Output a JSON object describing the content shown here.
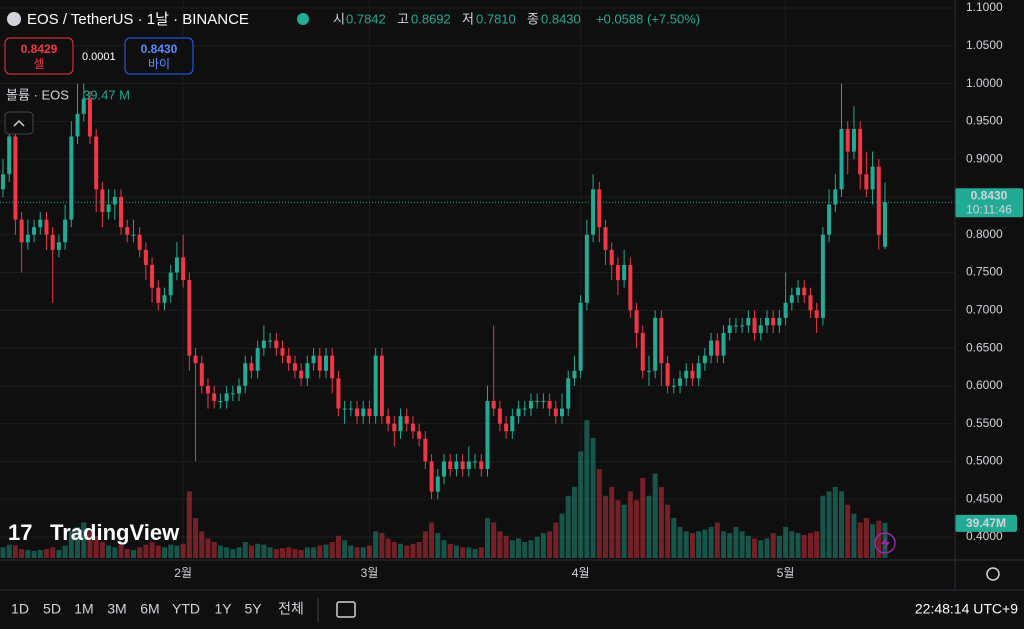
{
  "chart_data": {
    "type": "candlestick",
    "title": "EOS / TetherUS · 1날 · BINANCE",
    "open": [
      0.86,
      0.88,
      0.93,
      0.82,
      0.79,
      0.8,
      0.81,
      0.82,
      0.8,
      0.78,
      0.79,
      0.82,
      0.93,
      0.96,
      0.98,
      0.93,
      0.86,
      0.83,
      0.84,
      0.85,
      0.81,
      0.8,
      0.8,
      0.78,
      0.76,
      0.73,
      0.71,
      0.72,
      0.75,
      0.77,
      0.74,
      0.64,
      0.63,
      0.6,
      0.59,
      0.58,
      0.58,
      0.59,
      0.59,
      0.6,
      0.63,
      0.62,
      0.65,
      0.66,
      0.66,
      0.65,
      0.64,
      0.63,
      0.62,
      0.61,
      0.63,
      0.64,
      0.62,
      0.64,
      0.61,
      0.57,
      0.57,
      0.57,
      0.56,
      0.57,
      0.56,
      0.64,
      0.56,
      0.55,
      0.54,
      0.56,
      0.55,
      0.54,
      0.53,
      0.5,
      0.46,
      0.48,
      0.5,
      0.49,
      0.5,
      0.49,
      0.5,
      0.5,
      0.49,
      0.58,
      0.57,
      0.55,
      0.54,
      0.56,
      0.57,
      0.57,
      0.58,
      0.58,
      0.58,
      0.57,
      0.56,
      0.57,
      0.61,
      0.62,
      0.71,
      0.8,
      0.86,
      0.81,
      0.78,
      0.76,
      0.74,
      0.76,
      0.7,
      0.67,
      0.62,
      0.62,
      0.69,
      0.63,
      0.6,
      0.6,
      0.61,
      0.62,
      0.61,
      0.63,
      0.64,
      0.66,
      0.64,
      0.67,
      0.68,
      0.68,
      0.68,
      0.69,
      0.67,
      0.68,
      0.69,
      0.68,
      0.69,
      0.71,
      0.72,
      0.73,
      0.72,
      0.7,
      0.69,
      0.8,
      0.84,
      0.86,
      0.94,
      0.91,
      0.94,
      0.88,
      0.86,
      0.89,
      0.7842
    ],
    "high": [
      0.9,
      0.94,
      0.94,
      0.83,
      0.82,
      0.82,
      0.83,
      0.83,
      0.81,
      0.8,
      0.84,
      0.95,
      1.0,
      1.0,
      0.99,
      0.94,
      0.87,
      0.86,
      0.86,
      0.86,
      0.82,
      0.82,
      0.81,
      0.79,
      0.77,
      0.74,
      0.73,
      0.76,
      0.79,
      0.8,
      0.75,
      0.65,
      0.64,
      0.61,
      0.6,
      0.59,
      0.6,
      0.6,
      0.61,
      0.64,
      0.64,
      0.66,
      0.68,
      0.67,
      0.67,
      0.66,
      0.65,
      0.64,
      0.63,
      0.64,
      0.65,
      0.65,
      0.65,
      0.65,
      0.62,
      0.58,
      0.58,
      0.58,
      0.58,
      0.58,
      0.65,
      0.65,
      0.57,
      0.56,
      0.57,
      0.57,
      0.56,
      0.55,
      0.54,
      0.51,
      0.49,
      0.51,
      0.51,
      0.51,
      0.51,
      0.52,
      0.51,
      0.51,
      0.6,
      0.68,
      0.58,
      0.56,
      0.57,
      0.58,
      0.58,
      0.59,
      0.59,
      0.59,
      0.59,
      0.58,
      0.59,
      0.62,
      0.64,
      0.72,
      0.82,
      0.88,
      0.87,
      0.82,
      0.79,
      0.77,
      0.78,
      0.77,
      0.71,
      0.68,
      0.64,
      0.7,
      0.7,
      0.64,
      0.61,
      0.62,
      0.63,
      0.63,
      0.64,
      0.65,
      0.67,
      0.67,
      0.68,
      0.69,
      0.69,
      0.69,
      0.7,
      0.7,
      0.69,
      0.7,
      0.7,
      0.7,
      0.75,
      0.73,
      0.74,
      0.74,
      0.73,
      0.71,
      0.81,
      0.86,
      0.88,
      1.0,
      0.95,
      0.97,
      0.95,
      0.91,
      0.91,
      0.9,
      0.8692
    ],
    "low": [
      0.85,
      0.87,
      0.8,
      0.75,
      0.78,
      0.79,
      0.8,
      0.78,
      0.71,
      0.77,
      0.78,
      0.81,
      0.92,
      0.95,
      0.92,
      0.83,
      0.81,
      0.82,
      0.82,
      0.8,
      0.79,
      0.79,
      0.77,
      0.74,
      0.71,
      0.7,
      0.7,
      0.71,
      0.74,
      0.73,
      0.62,
      0.5,
      0.59,
      0.57,
      0.57,
      0.57,
      0.57,
      0.58,
      0.58,
      0.59,
      0.61,
      0.61,
      0.64,
      0.65,
      0.64,
      0.63,
      0.62,
      0.61,
      0.6,
      0.6,
      0.62,
      0.61,
      0.61,
      0.59,
      0.56,
      0.55,
      0.56,
      0.55,
      0.55,
      0.55,
      0.55,
      0.55,
      0.54,
      0.52,
      0.53,
      0.54,
      0.53,
      0.52,
      0.49,
      0.45,
      0.45,
      0.47,
      0.48,
      0.48,
      0.48,
      0.48,
      0.49,
      0.48,
      0.48,
      0.56,
      0.54,
      0.53,
      0.53,
      0.55,
      0.56,
      0.56,
      0.57,
      0.57,
      0.56,
      0.55,
      0.55,
      0.56,
      0.6,
      0.61,
      0.7,
      0.79,
      0.79,
      0.76,
      0.74,
      0.72,
      0.73,
      0.69,
      0.65,
      0.61,
      0.6,
      0.61,
      0.6,
      0.59,
      0.59,
      0.59,
      0.6,
      0.6,
      0.6,
      0.62,
      0.63,
      0.63,
      0.63,
      0.66,
      0.67,
      0.67,
      0.67,
      0.66,
      0.66,
      0.67,
      0.67,
      0.67,
      0.68,
      0.7,
      0.71,
      0.71,
      0.69,
      0.67,
      0.68,
      0.79,
      0.83,
      0.85,
      0.88,
      0.9,
      0.86,
      0.85,
      0.84,
      0.78,
      0.781
    ],
    "close": [
      0.88,
      0.93,
      0.82,
      0.79,
      0.8,
      0.81,
      0.82,
      0.8,
      0.78,
      0.79,
      0.82,
      0.93,
      0.96,
      0.98,
      0.93,
      0.86,
      0.83,
      0.84,
      0.85,
      0.81,
      0.8,
      0.8,
      0.78,
      0.76,
      0.73,
      0.71,
      0.72,
      0.75,
      0.77,
      0.74,
      0.64,
      0.63,
      0.6,
      0.59,
      0.58,
      0.58,
      0.59,
      0.59,
      0.6,
      0.63,
      0.62,
      0.65,
      0.66,
      0.66,
      0.65,
      0.64,
      0.63,
      0.62,
      0.61,
      0.63,
      0.64,
      0.62,
      0.64,
      0.61,
      0.57,
      0.57,
      0.57,
      0.56,
      0.57,
      0.56,
      0.64,
      0.56,
      0.55,
      0.54,
      0.56,
      0.55,
      0.54,
      0.53,
      0.5,
      0.46,
      0.48,
      0.5,
      0.49,
      0.5,
      0.49,
      0.5,
      0.5,
      0.49,
      0.58,
      0.57,
      0.55,
      0.54,
      0.56,
      0.57,
      0.57,
      0.58,
      0.58,
      0.58,
      0.57,
      0.56,
      0.57,
      0.61,
      0.62,
      0.71,
      0.8,
      0.86,
      0.81,
      0.78,
      0.76,
      0.74,
      0.76,
      0.7,
      0.67,
      0.62,
      0.62,
      0.69,
      0.63,
      0.6,
      0.6,
      0.61,
      0.62,
      0.61,
      0.63,
      0.64,
      0.66,
      0.64,
      0.67,
      0.68,
      0.68,
      0.68,
      0.69,
      0.67,
      0.68,
      0.69,
      0.68,
      0.69,
      0.71,
      0.72,
      0.73,
      0.72,
      0.7,
      0.69,
      0.8,
      0.84,
      0.86,
      0.94,
      0.91,
      0.94,
      0.88,
      0.86,
      0.89,
      0.8,
      0.843
    ],
    "volume": [
      12,
      15,
      14,
      10,
      9,
      8,
      9,
      10,
      12,
      9,
      14,
      30,
      35,
      40,
      30,
      25,
      18,
      14,
      12,
      15,
      10,
      9,
      12,
      15,
      18,
      14,
      12,
      15,
      14,
      16,
      75,
      45,
      30,
      22,
      18,
      14,
      12,
      10,
      12,
      18,
      14,
      16,
      15,
      12,
      10,
      11,
      12,
      10,
      9,
      12,
      12,
      14,
      15,
      18,
      25,
      20,
      14,
      12,
      12,
      14,
      30,
      28,
      22,
      18,
      16,
      14,
      16,
      18,
      30,
      40,
      28,
      20,
      16,
      14,
      12,
      12,
      10,
      12,
      45,
      40,
      30,
      25,
      20,
      22,
      18,
      20,
      24,
      28,
      30,
      40,
      50,
      70,
      80,
      120,
      155,
      135,
      100,
      70,
      80,
      65,
      60,
      75,
      65,
      90,
      70,
      95,
      80,
      60,
      45,
      35,
      30,
      28,
      30,
      32,
      35,
      40,
      30,
      28,
      35,
      30,
      25,
      22,
      20,
      22,
      28,
      25,
      35,
      30,
      28,
      26,
      28,
      30,
      70,
      75,
      80,
      75,
      60,
      50,
      40,
      45,
      38,
      42,
      39.47
    ],
    "xticks": [
      {
        "value": 29,
        "label": "2월"
      },
      {
        "value": 59,
        "label": "3월"
      },
      {
        "value": 93,
        "label": "4월"
      },
      {
        "value": 126,
        "label": "5월"
      }
    ],
    "ylim": [
      0.3696,
      1.1106
    ],
    "yticks": [
      {
        "value": 1.1,
        "label": "1.1000"
      },
      {
        "value": 1.05,
        "label": "1.0500"
      },
      {
        "value": 1.0,
        "label": "1.0000"
      },
      {
        "value": 0.95,
        "label": "0.9500"
      },
      {
        "value": 0.9,
        "label": "0.9000"
      },
      {
        "value": 0.85,
        "label": "0.8500"
      },
      {
        "value": 0.8,
        "label": "0.8000"
      },
      {
        "value": 0.75,
        "label": "0.7500"
      },
      {
        "value": 0.7,
        "label": "0.7000"
      },
      {
        "value": 0.65,
        "label": "0.6500"
      },
      {
        "value": 0.6,
        "label": "0.6000"
      },
      {
        "value": 0.55,
        "label": "0.5500"
      },
      {
        "value": 0.5,
        "label": "0.5000"
      },
      {
        "value": 0.45,
        "label": "0.4500"
      },
      {
        "value": 0.4,
        "label": "0.4000"
      }
    ],
    "vlim": [
      0,
      180
    ],
    "grid": true,
    "up_color": "#22ab94",
    "down_color": "#f23645",
    "last_price_label": "0.8430",
    "countdown": "10:11:46",
    "volume_label": "39.47M"
  },
  "legend": {
    "items": [
      {
        "key": "시",
        "value": "0.7842"
      },
      {
        "key": "고",
        "value": "0.8692"
      },
      {
        "key": "저",
        "value": "0.7810"
      },
      {
        "key": "종",
        "value": "0.8430"
      }
    ],
    "change": "+0.0588 (+7.50%)"
  },
  "trade": {
    "sell_price": "0.8429",
    "sell_label": "셀",
    "spread": "0.0001",
    "buy_price": "0.8430",
    "buy_label": "바이"
  },
  "volume_legend": {
    "title": "볼륨 · EOS",
    "value": "39.47 M"
  },
  "logo": "TradingView",
  "toolbar": {
    "ranges": [
      "1D",
      "5D",
      "1M",
      "3M",
      "6M",
      "YTD",
      "1Y",
      "5Y",
      "전체"
    ],
    "clock": "22:48:14 UTC+9"
  }
}
